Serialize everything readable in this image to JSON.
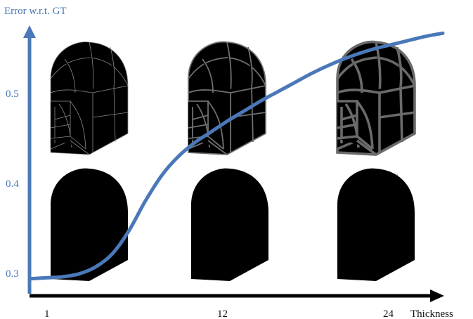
{
  "chart_data": {
    "type": "line",
    "title": "",
    "ylabel": "Error w.r.t. GT",
    "xlabel": "Thickness",
    "x_ticks": [
      1,
      12,
      24
    ],
    "y_ticks": [
      "0.3",
      "0.4",
      "0.5"
    ],
    "xlim": [
      1,
      26
    ],
    "ylim": [
      0.285,
      0.555
    ],
    "series": [
      {
        "color": "#4a78b8",
        "x": [
          1,
          2,
          3,
          4,
          5,
          6,
          7,
          8,
          9,
          10,
          11,
          12,
          13,
          14,
          15,
          16,
          17,
          18,
          19,
          20,
          21,
          22,
          23,
          24,
          25,
          26
        ],
        "y": [
          0.3,
          0.301,
          0.302,
          0.305,
          0.312,
          0.325,
          0.348,
          0.378,
          0.404,
          0.423,
          0.437,
          0.448,
          0.459,
          0.469,
          0.479,
          0.488,
          0.497,
          0.506,
          0.514,
          0.521,
          0.527,
          0.532,
          0.536,
          0.54,
          0.544,
          0.547
        ]
      }
    ],
    "grid": false,
    "legend": "none"
  },
  "colors": {
    "axis_y": "#4a78b8",
    "axis_x": "#000000",
    "curve": "#4a78b8",
    "wireframe_blue": "#1f1fd6",
    "wireframe_gray": "#666666"
  },
  "panel_icons": [
    "arch-wireframe-gray-thin",
    "arch-wireframe-gray-medium",
    "arch-wireframe-gray-thick",
    "arch-wireframe-blue"
  ]
}
